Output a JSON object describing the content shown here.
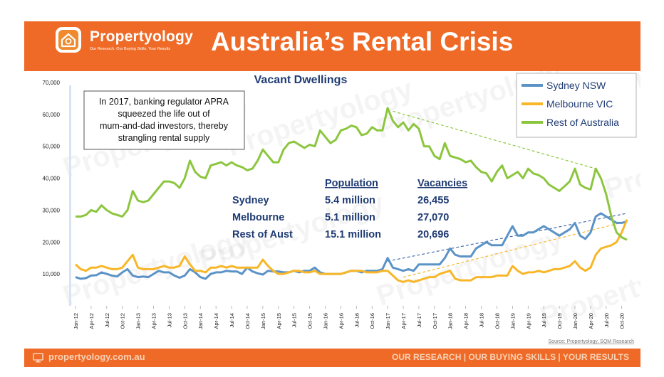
{
  "header": {
    "brand": "Propertyology",
    "tagline": "Our Research. Our Buying Skills. Your Results",
    "title": "Australia’s Rental Crisis",
    "color": "#EF6A26"
  },
  "footer": {
    "url": "propertyology.com.au",
    "tagline": "OUR RESEARCH | OUR BUYING SKILLS | YOUR RESULTS",
    "icon": "monitor-icon"
  },
  "watermark": "Propertyology",
  "chart_data": {
    "type": "line",
    "title": "Vacant Dwellings",
    "ylim": [
      0,
      70000
    ],
    "yticks": [
      10000,
      20000,
      30000,
      40000,
      50000,
      60000,
      70000
    ],
    "ytick_labels": [
      "10,000",
      "20,000",
      "30,000",
      "40,000",
      "50,000",
      "60,000",
      "70,000"
    ],
    "grid": false,
    "legend_position": "top-right",
    "x_start": "Jan-12",
    "x_tick_labels": [
      "Jan-12",
      "Apr-12",
      "Jul-12",
      "Oct-12",
      "Jan-13",
      "Apr-13",
      "Jul-13",
      "Oct-13",
      "Jan-14",
      "Apr-14",
      "Jul-14",
      "Oct-14",
      "Jan-15",
      "Apr-15",
      "Jul-15",
      "Oct-15",
      "Jan-16",
      "Apr-16",
      "Jul-16",
      "Oct-16",
      "Jan-17",
      "Apr-17",
      "Jul-17",
      "Oct-17",
      "Jan-18",
      "Apr-18",
      "Jul-18",
      "Oct-18",
      "Jan-19",
      "Apr-19",
      "Jul-19",
      "Oct-19",
      "Jan-20",
      "Apr-20",
      "Jul-20",
      "Oct-20"
    ],
    "series": [
      {
        "name": "Sydney NSW",
        "color": "#5B93C7",
        "values": [
          9000,
          8500,
          8700,
          9500,
          9600,
          10500,
          10000,
          9500,
          9200,
          10500,
          11500,
          9500,
          9000,
          9200,
          9000,
          10000,
          11000,
          10500,
          10500,
          9500,
          8800,
          9500,
          11500,
          10500,
          9000,
          8500,
          10000,
          10500,
          10500,
          11000,
          10800,
          10800,
          10000,
          12000,
          10800,
          10200,
          9800,
          11000,
          10800,
          10800,
          10500,
          10500,
          11000,
          10500,
          11000,
          11000,
          12000,
          10500,
          10000,
          10000,
          10000,
          10000,
          10500,
          11000,
          11000,
          10500,
          11000,
          11000,
          11000,
          11500,
          15000,
          12000,
          11500,
          11000,
          11500,
          11000,
          13000,
          13000,
          13000,
          13000,
          13000,
          15000,
          18000,
          16000,
          15500,
          15500,
          15500,
          18000,
          19000,
          20000,
          19000,
          19000,
          19000,
          22000,
          25000,
          22000,
          22000,
          23000,
          23000,
          24000,
          25000,
          24000,
          23000,
          22000,
          23000,
          24000,
          26000,
          22000,
          21000,
          23000,
          28000,
          29000,
          28000,
          27000,
          26000,
          26000,
          26455
        ]
      },
      {
        "name": "Melbourne VIC",
        "color": "#F8B628",
        "values": [
          13000,
          11500,
          11000,
          12000,
          12000,
          12500,
          12000,
          11500,
          11500,
          12000,
          14000,
          16000,
          12000,
          11500,
          11500,
          11500,
          12000,
          12500,
          12000,
          12000,
          12500,
          15500,
          13000,
          11000,
          11000,
          10500,
          12000,
          12000,
          12500,
          12000,
          12500,
          12000,
          12000,
          12000,
          12000,
          12000,
          14500,
          12500,
          11000,
          10000,
          10000,
          10500,
          11000,
          11000,
          10500,
          10500,
          11000,
          10000,
          10000,
          10000,
          10000,
          10000,
          10500,
          11000,
          11000,
          11000,
          10500,
          10500,
          10500,
          11000,
          11000,
          9500,
          8000,
          7500,
          8000,
          7500,
          8000,
          8500,
          9000,
          9000,
          10000,
          10500,
          11000,
          8500,
          8000,
          8000,
          8000,
          9000,
          9000,
          9000,
          9000,
          9500,
          9500,
          9500,
          12500,
          11000,
          10000,
          10500,
          10500,
          11000,
          10500,
          11000,
          11500,
          11500,
          12000,
          12500,
          14000,
          12000,
          11000,
          12000,
          16000,
          18000,
          18500,
          19000,
          20000,
          23000,
          27070
        ]
      },
      {
        "name": "Rest of Australia",
        "color": "#8CC63F",
        "values": [
          28000,
          28000,
          28500,
          30000,
          29500,
          31500,
          30000,
          29000,
          28500,
          28000,
          30000,
          36000,
          33000,
          32500,
          33000,
          35000,
          37000,
          39000,
          39000,
          38500,
          37000,
          40000,
          45500,
          42000,
          40500,
          40000,
          44000,
          44500,
          45000,
          44000,
          45000,
          44000,
          43500,
          42500,
          43000,
          45500,
          49000,
          47000,
          45000,
          45000,
          49000,
          51000,
          51500,
          50500,
          49500,
          50500,
          50000,
          55000,
          53000,
          51000,
          52000,
          55000,
          55500,
          56500,
          56000,
          53500,
          54000,
          56000,
          55000,
          55000,
          62000,
          58000,
          56000,
          57500,
          55000,
          57000,
          55500,
          50000,
          50000,
          47000,
          46000,
          51000,
          47000,
          46500,
          46000,
          45000,
          45500,
          43500,
          42000,
          41500,
          39000,
          42000,
          44000,
          40000,
          41000,
          42000,
          40000,
          43000,
          41500,
          41000,
          40000,
          38000,
          37000,
          36000,
          37500,
          39000,
          43000,
          38000,
          37000,
          36500,
          43000,
          40000,
          35000,
          28000,
          23000,
          21500,
          20696
        ]
      }
    ],
    "trendlines": [
      {
        "series": "Rest of Australia",
        "color": "#8CC63F",
        "from_index": 61,
        "to_index": 100,
        "from_value": 61000,
        "to_value": 43000
      },
      {
        "series": "Sydney NSW",
        "color": "#3A64A8",
        "from_index": 60,
        "to_index": 106,
        "from_value": 14000,
        "to_value": 29000
      },
      {
        "series": "Melbourne VIC",
        "color": "#F8B628",
        "from_index": 63,
        "to_index": 106,
        "from_value": 9000,
        "to_value": 26500
      }
    ],
    "annotation_box": "In 2017,  banking regulator APRA squeezed the life out of mum-and-dad investors, thereby strangling rental supply",
    "stats_table": {
      "headers": [
        "Population",
        "Vacancies"
      ],
      "rows": [
        {
          "name": "Sydney",
          "population": "5.4 million",
          "vacancies": "26,455"
        },
        {
          "name": "Melbourne",
          "population": "5.1 million",
          "vacancies": "27,070"
        },
        {
          "name": "Rest of Aust",
          "population": "15.1 million",
          "vacancies": "20,696"
        }
      ],
      "color": "#1F3B73"
    },
    "source": "Source: Propertyology, SQM Research"
  }
}
